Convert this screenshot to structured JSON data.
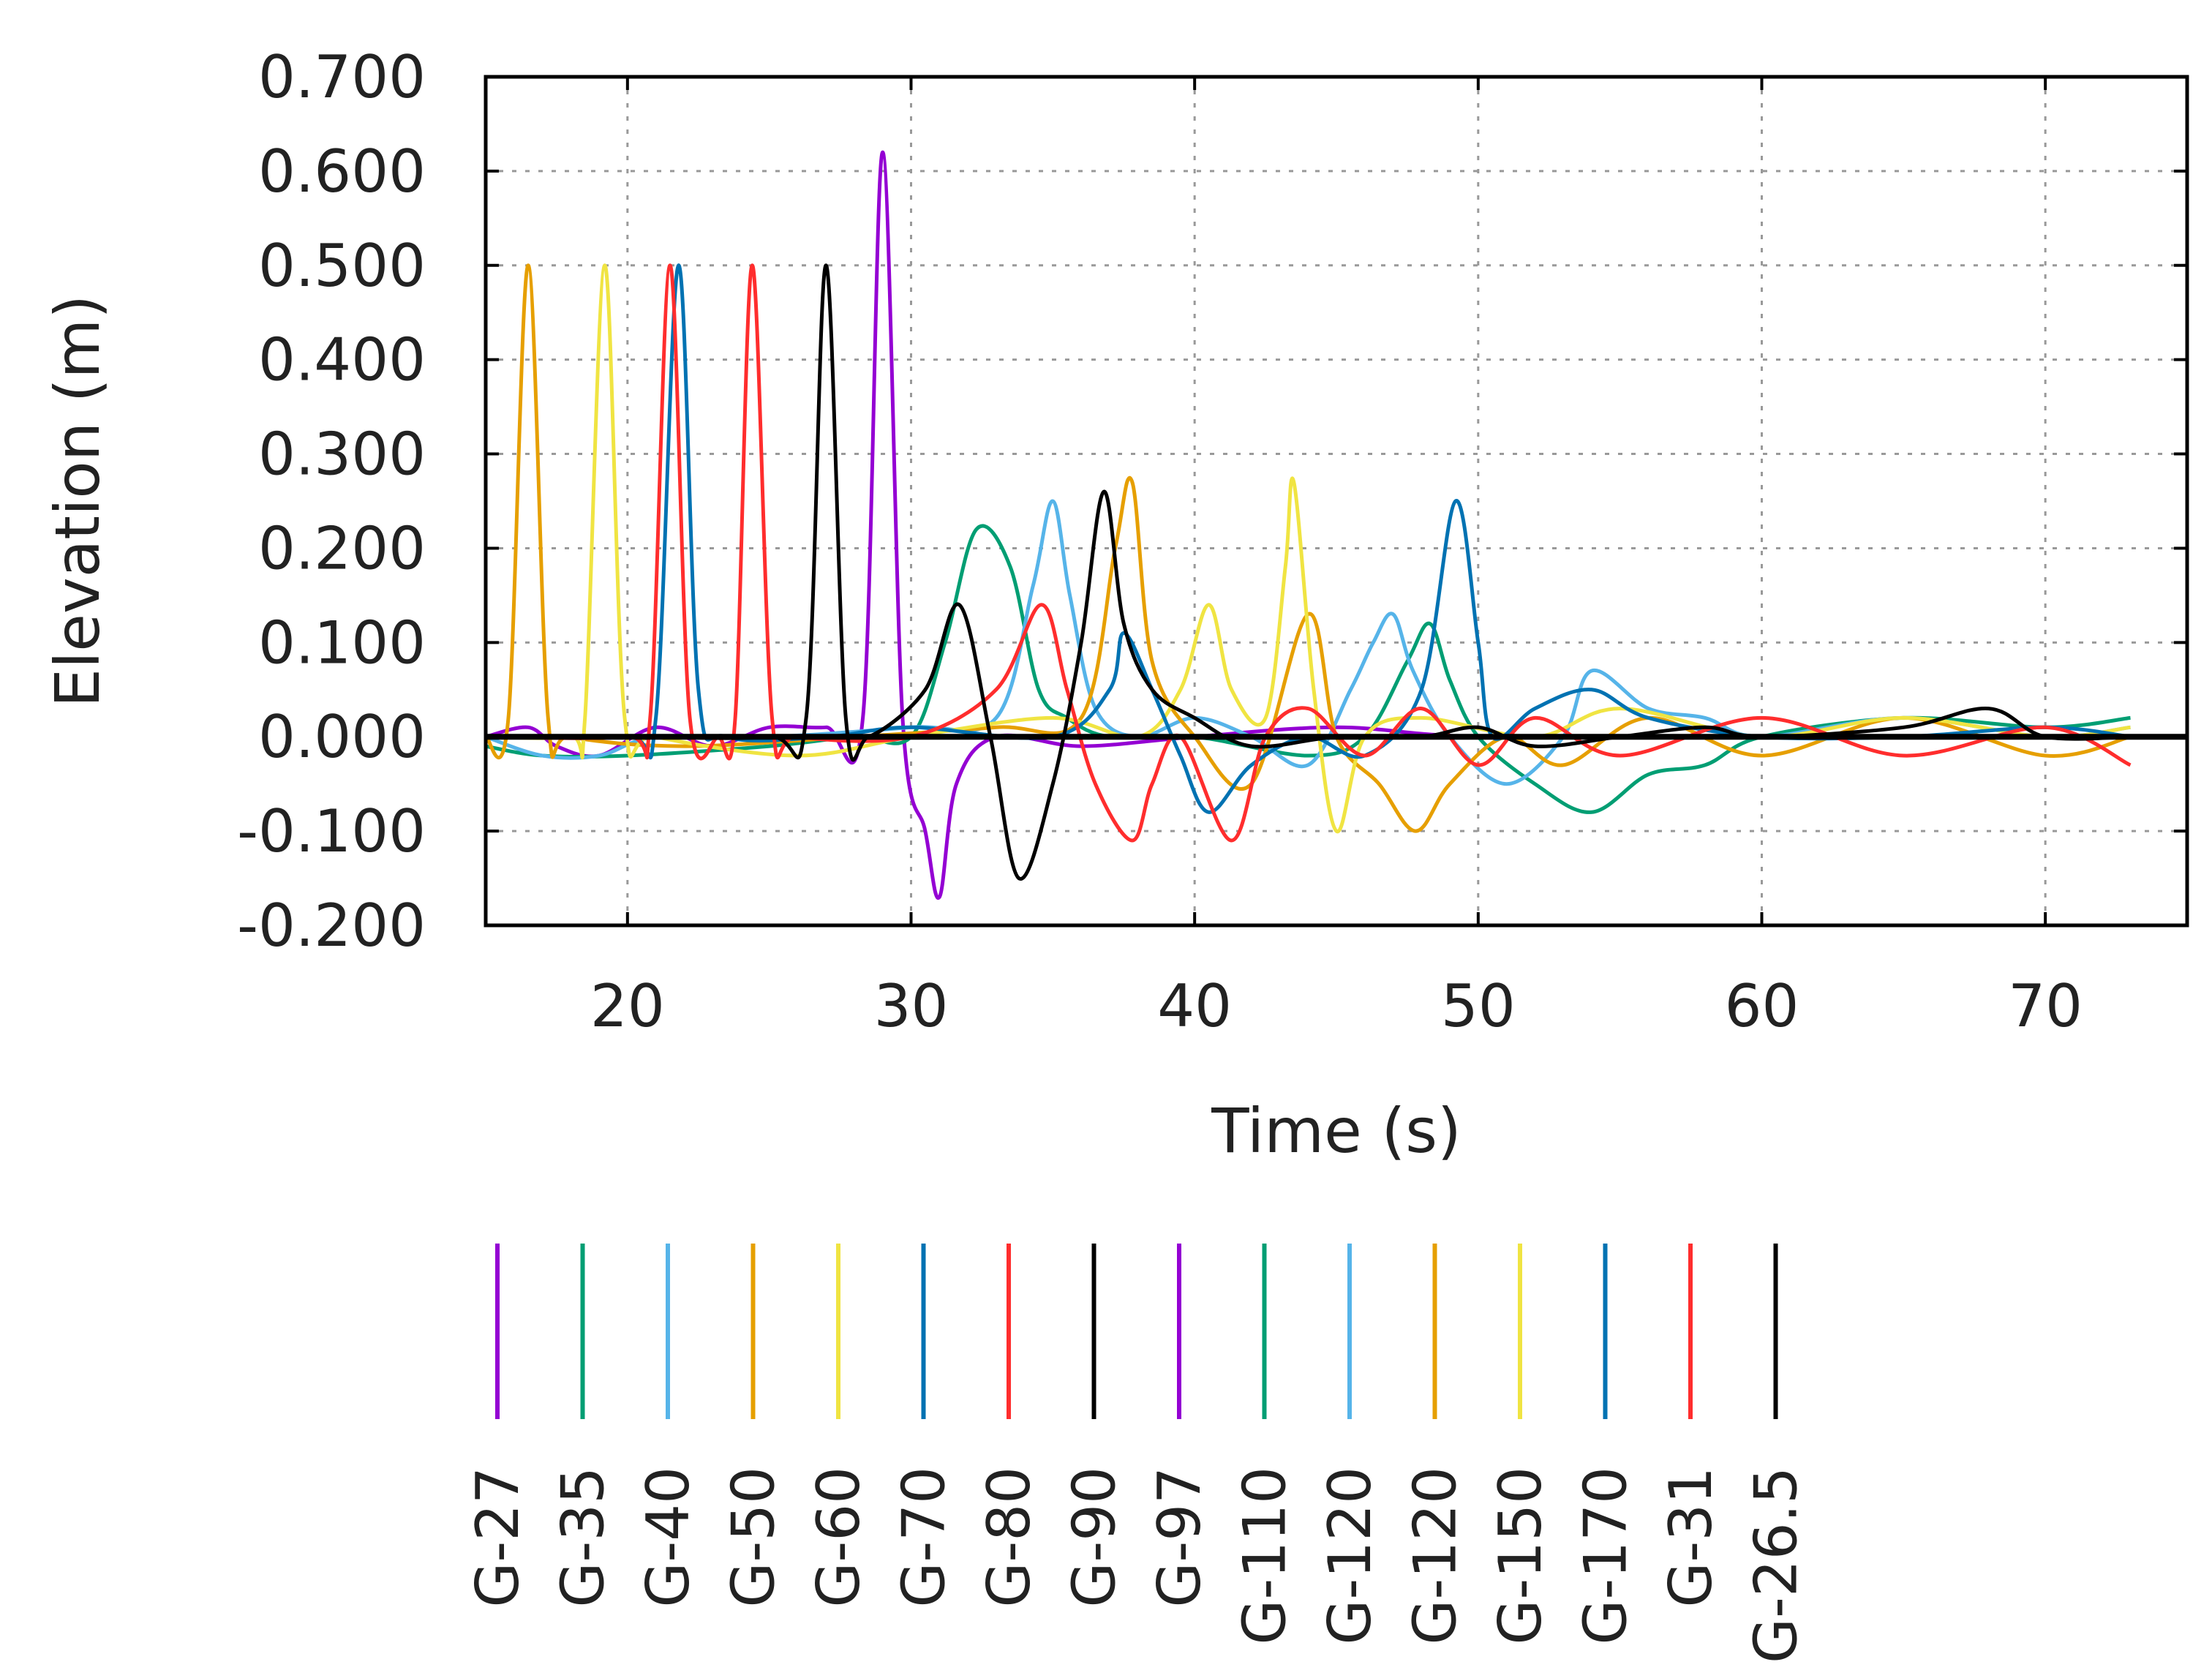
{
  "chart_data": {
    "type": "line",
    "title": "",
    "xlabel": "Time (s)",
    "ylabel": "Elevation (m)",
    "xlim": [
      15,
      75
    ],
    "ylim": [
      -0.2,
      0.7
    ],
    "xticks": [
      "20",
      "30",
      "40",
      "50",
      "60",
      "70"
    ],
    "yticks": [
      "-0.200",
      "-0.100",
      "0.000",
      "0.100",
      "0.200",
      "0.300",
      "0.400",
      "0.500",
      "0.600",
      "0.700"
    ],
    "grid": true,
    "legend_position": "bottom",
    "series": [
      {
        "name": "G-27",
        "color": "#9400d3",
        "points": [
          [
            15,
            0
          ],
          [
            16.5,
            0.01
          ],
          [
            17.5,
            -0.01
          ],
          [
            19,
            -0.02
          ],
          [
            21,
            0.01
          ],
          [
            23,
            -0.01
          ],
          [
            25,
            0.01
          ],
          [
            27,
            0.01
          ],
          [
            28.3,
            0.02
          ],
          [
            29,
            0.62
          ],
          [
            29.7,
            0.02
          ],
          [
            30.5,
            -0.1
          ],
          [
            31,
            -0.17
          ],
          [
            31.6,
            -0.05
          ],
          [
            33,
            0.0
          ],
          [
            36,
            -0.01
          ],
          [
            40,
            0.0
          ],
          [
            45,
            0.01
          ],
          [
            50,
            0.0
          ],
          [
            60,
            0.0
          ],
          [
            73,
            0.0
          ]
        ]
      },
      {
        "name": "G-35",
        "color": "#009e73",
        "points": [
          [
            15,
            -0.01
          ],
          [
            17,
            -0.02
          ],
          [
            20,
            -0.02
          ],
          [
            25,
            -0.01
          ],
          [
            28,
            0.0
          ],
          [
            30,
            0.0
          ],
          [
            31.2,
            0.1
          ],
          [
            32.3,
            0.22
          ],
          [
            33.5,
            0.18
          ],
          [
            34.5,
            0.05
          ],
          [
            35.5,
            0.02
          ],
          [
            37,
            0.0
          ],
          [
            40,
            0.0
          ],
          [
            44,
            -0.02
          ],
          [
            46,
            0.0
          ],
          [
            47.5,
            0.08
          ],
          [
            48.3,
            0.12
          ],
          [
            49,
            0.06
          ],
          [
            50,
            0.0
          ],
          [
            52,
            -0.05
          ],
          [
            54,
            -0.08
          ],
          [
            56,
            -0.04
          ],
          [
            58,
            -0.03
          ],
          [
            60,
            0.0
          ],
          [
            65,
            0.02
          ],
          [
            70,
            0.01
          ],
          [
            73,
            0.02
          ]
        ]
      },
      {
        "name": "G-40",
        "color": "#56b4e9",
        "points": [
          [
            15,
            0.0
          ],
          [
            17,
            -0.02
          ],
          [
            19,
            -0.02
          ],
          [
            21,
            0.0
          ],
          [
            25,
            0.0
          ],
          [
            30,
            0.01
          ],
          [
            33,
            0.02
          ],
          [
            34.3,
            0.16
          ],
          [
            35,
            0.25
          ],
          [
            35.6,
            0.15
          ],
          [
            36.5,
            0.03
          ],
          [
            38,
            0.0
          ],
          [
            40,
            0.02
          ],
          [
            42,
            0.0
          ],
          [
            44,
            -0.03
          ],
          [
            45.5,
            0.05
          ],
          [
            46.3,
            0.1
          ],
          [
            47,
            0.13
          ],
          [
            47.7,
            0.07
          ],
          [
            49,
            0.0
          ],
          [
            51,
            -0.05
          ],
          [
            53,
            0.0
          ],
          [
            54,
            0.07
          ],
          [
            56,
            0.03
          ],
          [
            58,
            0.02
          ],
          [
            60,
            0.0
          ],
          [
            65,
            0.02
          ],
          [
            70,
            0.0
          ],
          [
            73,
            0.01
          ]
        ]
      },
      {
        "name": "G-50",
        "color": "#e69f00",
        "points": [
          [
            15,
            0.0
          ],
          [
            15.8,
            0.02
          ],
          [
            16.5,
            0.5
          ],
          [
            17.2,
            0.02
          ],
          [
            18,
            0.0
          ],
          [
            22,
            -0.01
          ],
          [
            28,
            0.0
          ],
          [
            33,
            0.01
          ],
          [
            36,
            0.02
          ],
          [
            37.2,
            0.2
          ],
          [
            37.8,
            0.27
          ],
          [
            38.5,
            0.08
          ],
          [
            40,
            0.0
          ],
          [
            42,
            -0.05
          ],
          [
            44,
            0.13
          ],
          [
            45,
            0.0
          ],
          [
            46.5,
            -0.05
          ],
          [
            47.8,
            -0.1
          ],
          [
            49,
            -0.05
          ],
          [
            51,
            0.0
          ],
          [
            53,
            -0.03
          ],
          [
            56,
            0.02
          ],
          [
            60,
            -0.02
          ],
          [
            65,
            0.02
          ],
          [
            70,
            -0.02
          ],
          [
            73,
            0.0
          ]
        ]
      },
      {
        "name": "G-60",
        "color": "#f0e442",
        "points": [
          [
            15,
            0.0
          ],
          [
            18,
            0.0
          ],
          [
            18.5,
            0.02
          ],
          [
            19.2,
            0.5
          ],
          [
            19.9,
            0.02
          ],
          [
            21,
            0.0
          ],
          [
            26,
            -0.02
          ],
          [
            30,
            0.0
          ],
          [
            35,
            0.02
          ],
          [
            38,
            0.0
          ],
          [
            39.5,
            0.05
          ],
          [
            40.5,
            0.14
          ],
          [
            41.3,
            0.05
          ],
          [
            42.5,
            0.02
          ],
          [
            43.2,
            0.18
          ],
          [
            43.5,
            0.27
          ],
          [
            44.2,
            0.05
          ],
          [
            45,
            -0.1
          ],
          [
            46,
            0.0
          ],
          [
            48,
            0.02
          ],
          [
            52,
            0.0
          ],
          [
            55,
            0.03
          ],
          [
            60,
            0.0
          ],
          [
            65,
            0.02
          ],
          [
            70,
            0.0
          ],
          [
            73,
            0.01
          ]
        ]
      },
      {
        "name": "G-70",
        "color": "#0072b2",
        "points": [
          [
            15,
            0.0
          ],
          [
            20,
            0.0
          ],
          [
            21,
            0.02
          ],
          [
            21.8,
            0.5
          ],
          [
            22.5,
            0.05
          ],
          [
            23.5,
            0.0
          ],
          [
            27,
            0.0
          ],
          [
            30,
            0.01
          ],
          [
            35,
            0.0
          ],
          [
            37,
            0.05
          ],
          [
            37.5,
            0.11
          ],
          [
            38.5,
            0.05
          ],
          [
            39.5,
            -0.02
          ],
          [
            40.5,
            -0.08
          ],
          [
            42,
            -0.03
          ],
          [
            44,
            0.0
          ],
          [
            46,
            -0.02
          ],
          [
            48,
            0.05
          ],
          [
            49.2,
            0.25
          ],
          [
            50,
            0.1
          ],
          [
            50.5,
            0.0
          ],
          [
            52,
            0.03
          ],
          [
            54,
            0.05
          ],
          [
            56,
            0.02
          ],
          [
            60,
            0.0
          ],
          [
            65,
            0.0
          ],
          [
            70,
            0.01
          ],
          [
            73,
            0.0
          ]
        ]
      },
      {
        "name": "G-80",
        "color": "#ff2d2d",
        "points": [
          [
            15,
            0.0
          ],
          [
            20,
            0.0
          ],
          [
            20.8,
            0.02
          ],
          [
            21.5,
            0.5
          ],
          [
            22.2,
            0.02
          ],
          [
            23.2,
            0.0
          ],
          [
            23.8,
            0.02
          ],
          [
            24.4,
            0.5
          ],
          [
            25.1,
            0.02
          ],
          [
            26,
            0.0
          ],
          [
            30,
            0.0
          ],
          [
            33,
            0.05
          ],
          [
            34.6,
            0.14
          ],
          [
            35.5,
            0.05
          ],
          [
            36.5,
            -0.05
          ],
          [
            37.8,
            -0.11
          ],
          [
            38.5,
            -0.05
          ],
          [
            39.5,
            0.0
          ],
          [
            41.3,
            -0.11
          ],
          [
            42.5,
            0.0
          ],
          [
            44,
            0.03
          ],
          [
            46,
            -0.02
          ],
          [
            48,
            0.03
          ],
          [
            50,
            -0.03
          ],
          [
            52,
            0.02
          ],
          [
            55,
            -0.02
          ],
          [
            60,
            0.02
          ],
          [
            65,
            -0.02
          ],
          [
            70,
            0.01
          ],
          [
            73,
            -0.03
          ]
        ]
      },
      {
        "name": "G-90",
        "color": "#000000",
        "points": [
          [
            15,
            0.0
          ],
          [
            20,
            0.0
          ],
          [
            25,
            0.0
          ],
          [
            26.3,
            0.02
          ],
          [
            27,
            0.5
          ],
          [
            27.7,
            0.02
          ],
          [
            28.5,
            0.0
          ],
          [
            30.5,
            0.05
          ],
          [
            31.7,
            0.14
          ],
          [
            32.8,
            0.0
          ],
          [
            33.8,
            -0.15
          ],
          [
            35,
            -0.05
          ],
          [
            36,
            0.1
          ],
          [
            36.8,
            0.26
          ],
          [
            37.5,
            0.12
          ],
          [
            38.5,
            0.05
          ],
          [
            40,
            0.02
          ],
          [
            42,
            -0.01
          ],
          [
            45,
            0.0
          ],
          [
            48,
            0.0
          ],
          [
            50,
            0.01
          ],
          [
            52,
            -0.01
          ],
          [
            55,
            0.0
          ],
          [
            58,
            0.01
          ],
          [
            60,
            0.0
          ],
          [
            65,
            0.01
          ],
          [
            68,
            0.03
          ],
          [
            70,
            0.0
          ],
          [
            73,
            0.0
          ]
        ]
      },
      {
        "name": "G-97",
        "color": "#9400d3",
        "points": [
          [
            15,
            0.0
          ],
          [
            20,
            0.0
          ],
          [
            30,
            0.0
          ],
          [
            40,
            0.0
          ],
          [
            50,
            0.0
          ],
          [
            60,
            0.0
          ],
          [
            73,
            0.0
          ]
        ]
      },
      {
        "name": "G-110",
        "color": "#009e73",
        "points": [
          [
            15,
            0.0
          ],
          [
            20,
            0.0
          ],
          [
            30,
            0.0
          ],
          [
            40,
            0.0
          ],
          [
            50,
            0.0
          ],
          [
            60,
            0.0
          ],
          [
            73,
            0.0
          ]
        ]
      },
      {
        "name": "G-120",
        "color": "#56b4e9",
        "points": [
          [
            15,
            0.0
          ],
          [
            20,
            0.0
          ],
          [
            30,
            0.0
          ],
          [
            40,
            0.0
          ],
          [
            50,
            0.0
          ],
          [
            60,
            0.0
          ],
          [
            73,
            0.0
          ]
        ]
      },
      {
        "name": "G-120",
        "color": "#e69f00",
        "points": [
          [
            15,
            0.0
          ],
          [
            20,
            0.0
          ],
          [
            30,
            0.0
          ],
          [
            40,
            0.0
          ],
          [
            50,
            0.0
          ],
          [
            60,
            0.0
          ],
          [
            73,
            0.0
          ]
        ]
      },
      {
        "name": "G-150",
        "color": "#f0e442",
        "points": [
          [
            15,
            0.0
          ],
          [
            20,
            0.0
          ],
          [
            30,
            0.0
          ],
          [
            40,
            0.0
          ],
          [
            50,
            0.0
          ],
          [
            60,
            0.0
          ],
          [
            73,
            0.0
          ]
        ]
      },
      {
        "name": "G-170",
        "color": "#0072b2",
        "points": [
          [
            15,
            0.0
          ],
          [
            20,
            0.0
          ],
          [
            30,
            0.0
          ],
          [
            40,
            0.0
          ],
          [
            50,
            0.0
          ],
          [
            60,
            0.0
          ],
          [
            73,
            0.0
          ]
        ]
      },
      {
        "name": "G-31",
        "color": "#ff2d2d",
        "points": [
          [
            15,
            0.0
          ],
          [
            20,
            0.0
          ],
          [
            30,
            0.0
          ],
          [
            40,
            0.0
          ],
          [
            50,
            0.0
          ],
          [
            60,
            0.0
          ],
          [
            73,
            0.0
          ]
        ]
      },
      {
        "name": "G-26.5",
        "color": "#000000",
        "points": [
          [
            15,
            0.0
          ],
          [
            20,
            0.0
          ],
          [
            30,
            0.0
          ],
          [
            40,
            0.0
          ],
          [
            50,
            0.0
          ],
          [
            60,
            0.0
          ],
          [
            73,
            0.0
          ]
        ]
      }
    ]
  }
}
